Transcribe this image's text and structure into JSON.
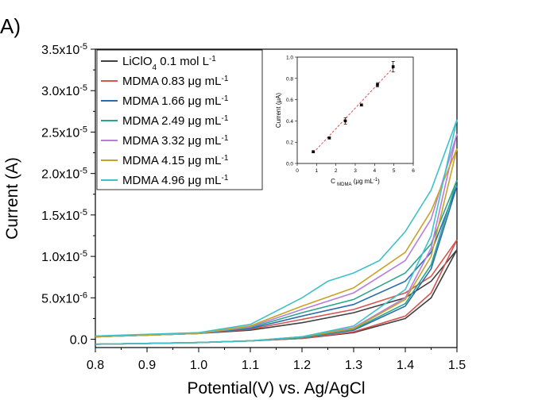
{
  "panel_label": "A)",
  "chart_data": [
    {
      "type": "line",
      "title": "",
      "xlabel": "Potential(V) vs. Ag/AgCl",
      "ylabel": "Current (A)",
      "xlim": [
        0.8,
        1.5
      ],
      "ylim": [
        -1e-06,
        3.5e-05
      ],
      "xticks": [
        0.8,
        0.9,
        1.0,
        1.1,
        1.2,
        1.3,
        1.4,
        1.5
      ],
      "xtick_labels": [
        "0.8",
        "0.9",
        "1.0",
        "1.1",
        "1.2",
        "1.3",
        "1.4",
        "1.5"
      ],
      "yticks": [
        0,
        5e-06,
        1e-05,
        1.5e-05,
        2e-05,
        2.5e-05,
        3e-05,
        3.5e-05
      ],
      "ytick_labels": [
        "0.0",
        "5.0x10-6",
        "1.0x10-5",
        "1.5x10-5",
        "2.0x10-5",
        "2.5x10-5",
        "3.0x10-5",
        "3.5x10-5"
      ],
      "grid": false,
      "legend_position": "top-left",
      "series": [
        {
          "name": "LiClO4 0.1 mol L-1",
          "color": "#404040",
          "forward": [
            [
              0.8,
              3e-07
            ],
            [
              0.9,
              5e-07
            ],
            [
              1.0,
              7e-07
            ],
            [
              1.1,
              1.1e-06
            ],
            [
              1.2,
              2e-06
            ],
            [
              1.3,
              3.2e-06
            ],
            [
              1.4,
              5e-06
            ],
            [
              1.45,
              7e-06
            ],
            [
              1.5,
              1.08e-05
            ]
          ],
          "reverse": [
            [
              1.5,
              1.08e-05
            ],
            [
              1.45,
              5e-06
            ],
            [
              1.4,
              2.5e-06
            ],
            [
              1.3,
              8e-07
            ],
            [
              1.2,
              1e-07
            ],
            [
              1.1,
              -2e-07
            ],
            [
              1.0,
              -4e-07
            ],
            [
              0.9,
              -5e-07
            ],
            [
              0.8,
              -6e-07
            ]
          ]
        },
        {
          "name": "MDMA 0.83 μg mL-1",
          "color": "#d9534f",
          "forward": [
            [
              0.8,
              3e-07
            ],
            [
              0.9,
              5e-07
            ],
            [
              1.0,
              7e-07
            ],
            [
              1.1,
              1.2e-06
            ],
            [
              1.2,
              2.4e-06
            ],
            [
              1.3,
              3.6e-06
            ],
            [
              1.4,
              5.6e-06
            ],
            [
              1.45,
              7.6e-06
            ],
            [
              1.5,
              1.2e-05
            ]
          ],
          "reverse": [
            [
              1.5,
              1.2e-05
            ],
            [
              1.45,
              5.6e-06
            ],
            [
              1.4,
              2.8e-06
            ],
            [
              1.3,
              9e-07
            ],
            [
              1.2,
              1e-07
            ],
            [
              1.1,
              -2e-07
            ],
            [
              1.0,
              -4e-07
            ],
            [
              0.9,
              -5e-07
            ],
            [
              0.8,
              -6e-07
            ]
          ]
        },
        {
          "name": "MDMA 1.66 μg mL-1",
          "color": "#2b6cb0",
          "forward": [
            [
              0.8,
              3e-07
            ],
            [
              0.9,
              5e-07
            ],
            [
              1.0,
              7e-07
            ],
            [
              1.1,
              1.3e-06
            ],
            [
              1.2,
              2.8e-06
            ],
            [
              1.3,
              4.2e-06
            ],
            [
              1.4,
              7e-06
            ],
            [
              1.45,
              1.05e-05
            ],
            [
              1.5,
              1.85e-05
            ]
          ],
          "reverse": [
            [
              1.5,
              1.85e-05
            ],
            [
              1.45,
              8.5e-06
            ],
            [
              1.4,
              4e-06
            ],
            [
              1.3,
              1.1e-06
            ],
            [
              1.2,
              2e-07
            ],
            [
              1.1,
              -2e-07
            ],
            [
              1.0,
              -4e-07
            ],
            [
              0.9,
              -5e-07
            ],
            [
              0.8,
              -6e-07
            ]
          ]
        },
        {
          "name": "MDMA 2.49 μg mL-1",
          "color": "#2ca58d",
          "forward": [
            [
              0.8,
              3e-07
            ],
            [
              0.9,
              5e-07
            ],
            [
              1.0,
              7e-07
            ],
            [
              1.1,
              1.4e-06
            ],
            [
              1.2,
              3.2e-06
            ],
            [
              1.3,
              4.8e-06
            ],
            [
              1.4,
              8e-06
            ],
            [
              1.45,
              1.15e-05
            ],
            [
              1.5,
              1.92e-05
            ]
          ],
          "reverse": [
            [
              1.5,
              1.92e-05
            ],
            [
              1.45,
              9e-06
            ],
            [
              1.4,
              4.3e-06
            ],
            [
              1.3,
              1.2e-06
            ],
            [
              1.2,
              2e-07
            ],
            [
              1.1,
              -2e-07
            ],
            [
              1.0,
              -4e-07
            ],
            [
              0.9,
              -5e-07
            ],
            [
              0.8,
              -6e-07
            ]
          ]
        },
        {
          "name": "MDMA 3.32 μg mL-1",
          "color": "#b57edc",
          "forward": [
            [
              0.8,
              3e-07
            ],
            [
              0.9,
              5e-07
            ],
            [
              1.0,
              7e-07
            ],
            [
              1.1,
              1.5e-06
            ],
            [
              1.2,
              3.6e-06
            ],
            [
              1.3,
              5.6e-06
            ],
            [
              1.4,
              9.5e-06
            ],
            [
              1.45,
              1.45e-05
            ],
            [
              1.5,
              2.48e-05
            ]
          ],
          "reverse": [
            [
              1.5,
              2.48e-05
            ],
            [
              1.45,
              1.1e-05
            ],
            [
              1.4,
              5e-06
            ],
            [
              1.3,
              1.4e-06
            ],
            [
              1.2,
              3e-07
            ],
            [
              1.1,
              -2e-07
            ],
            [
              1.0,
              -4e-07
            ],
            [
              0.9,
              -5e-07
            ],
            [
              0.8,
              -6e-07
            ]
          ]
        },
        {
          "name": "MDMA 4.15 μg mL-1",
          "color": "#c9a227",
          "forward": [
            [
              0.8,
              3e-07
            ],
            [
              0.9,
              5e-07
            ],
            [
              1.0,
              7e-07
            ],
            [
              1.1,
              1.6e-06
            ],
            [
              1.2,
              4e-06
            ],
            [
              1.3,
              6.2e-06
            ],
            [
              1.4,
              1.05e-05
            ],
            [
              1.45,
              1.55e-05
            ],
            [
              1.5,
              2.3e-05
            ]
          ],
          "reverse": [
            [
              1.5,
              2.3e-05
            ],
            [
              1.45,
              1e-05
            ],
            [
              1.4,
              4.8e-06
            ],
            [
              1.3,
              1.3e-06
            ],
            [
              1.2,
              3e-07
            ],
            [
              1.1,
              -2e-07
            ],
            [
              1.0,
              -4e-07
            ],
            [
              0.9,
              -5e-07
            ],
            [
              0.8,
              -6e-07
            ]
          ]
        },
        {
          "name": "MDMA 4.96 μg mL-1",
          "color": "#3fc1c9",
          "forward": [
            [
              0.8,
              4e-07
            ],
            [
              0.9,
              6e-07
            ],
            [
              1.0,
              8e-07
            ],
            [
              1.1,
              1.8e-06
            ],
            [
              1.2,
              5e-06
            ],
            [
              1.25,
              7e-06
            ],
            [
              1.3,
              8e-06
            ],
            [
              1.35,
              9.5e-06
            ],
            [
              1.4,
              1.3e-05
            ],
            [
              1.45,
              1.8e-05
            ],
            [
              1.5,
              2.65e-05
            ]
          ],
          "reverse": [
            [
              1.5,
              2.65e-05
            ],
            [
              1.45,
              1.25e-05
            ],
            [
              1.4,
              6e-06
            ],
            [
              1.3,
              1.6e-06
            ],
            [
              1.2,
              3e-07
            ],
            [
              1.1,
              -2e-07
            ],
            [
              1.0,
              -4e-07
            ],
            [
              0.9,
              -5e-07
            ],
            [
              0.8,
              -6e-07
            ]
          ]
        }
      ]
    },
    {
      "type": "scatter",
      "title": "",
      "xlabel": "C MDMA (μg mL-1)",
      "ylabel": "Current (μA)",
      "xlim": [
        0,
        6
      ],
      "ylim": [
        0.0,
        1.0
      ],
      "xticks": [
        0,
        1,
        2,
        3,
        4,
        5,
        6
      ],
      "xtick_labels": [
        "0",
        "1",
        "2",
        "3",
        "4",
        "5",
        "6"
      ],
      "yticks": [
        0.0,
        0.2,
        0.4,
        0.6,
        0.8,
        1.0
      ],
      "ytick_labels": [
        "0.0",
        "0.2",
        "0.4",
        "0.6",
        "0.8",
        "1.0"
      ],
      "grid": false,
      "x": [
        0.83,
        1.66,
        2.49,
        3.32,
        4.15,
        4.96
      ],
      "y": [
        0.11,
        0.24,
        0.4,
        0.55,
        0.74,
        0.91
      ],
      "error": [
        0.01,
        0.01,
        0.03,
        0.01,
        0.02,
        0.05
      ],
      "fit": {
        "style": "dashed",
        "color": "#e05050",
        "x": [
          0.83,
          4.96
        ],
        "y": [
          0.1,
          0.9
        ]
      }
    }
  ]
}
